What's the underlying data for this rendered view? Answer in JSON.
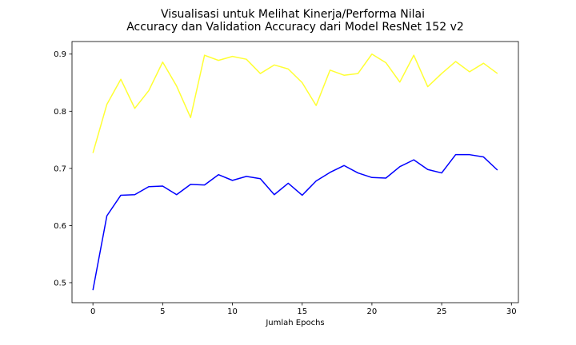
{
  "chart_data": {
    "type": "line",
    "title_lines": [
      "Visualisasi untuk Melihat Kinerja/Performa Nilai",
      "Accuracy dan Validation Accuracy dari Model ResNet 152 v2"
    ],
    "xlabel": "Jumlah Epochs",
    "ylabel": "",
    "xlim": [
      -1.5,
      30.5
    ],
    "ylim": [
      0.465,
      0.922
    ],
    "xticks": [
      0,
      5,
      10,
      15,
      20,
      25,
      30
    ],
    "yticks": [
      0.5,
      0.6,
      0.7,
      0.8,
      0.9
    ],
    "xtick_labels": [
      "0",
      "5",
      "10",
      "15",
      "20",
      "25",
      "30"
    ],
    "ytick_labels": [
      "0.5",
      "0.6",
      "0.7",
      "0.8",
      "0.9"
    ],
    "grid": false,
    "legend": "none",
    "x": [
      0,
      1,
      2,
      3,
      4,
      5,
      6,
      7,
      8,
      9,
      10,
      11,
      12,
      13,
      14,
      15,
      16,
      17,
      18,
      19,
      20,
      21,
      22,
      23,
      24,
      25,
      26,
      27,
      28,
      29
    ],
    "series": [
      {
        "color": "#0000ff",
        "values": [
          0.487,
          0.617,
          0.653,
          0.654,
          0.668,
          0.669,
          0.654,
          0.672,
          0.671,
          0.689,
          0.679,
          0.686,
          0.682,
          0.654,
          0.674,
          0.653,
          0.678,
          0.693,
          0.705,
          0.692,
          0.684,
          0.683,
          0.703,
          0.715,
          0.698,
          0.692,
          0.724,
          0.724,
          0.72,
          0.697
        ]
      },
      {
        "color": "#ffff33",
        "values": [
          0.727,
          0.812,
          0.856,
          0.805,
          0.836,
          0.886,
          0.844,
          0.789,
          0.898,
          0.889,
          0.896,
          0.891,
          0.866,
          0.881,
          0.874,
          0.85,
          0.81,
          0.872,
          0.863,
          0.866,
          0.9,
          0.885,
          0.851,
          0.898,
          0.843,
          0.866,
          0.887,
          0.869,
          0.884,
          0.866
        ]
      }
    ]
  }
}
